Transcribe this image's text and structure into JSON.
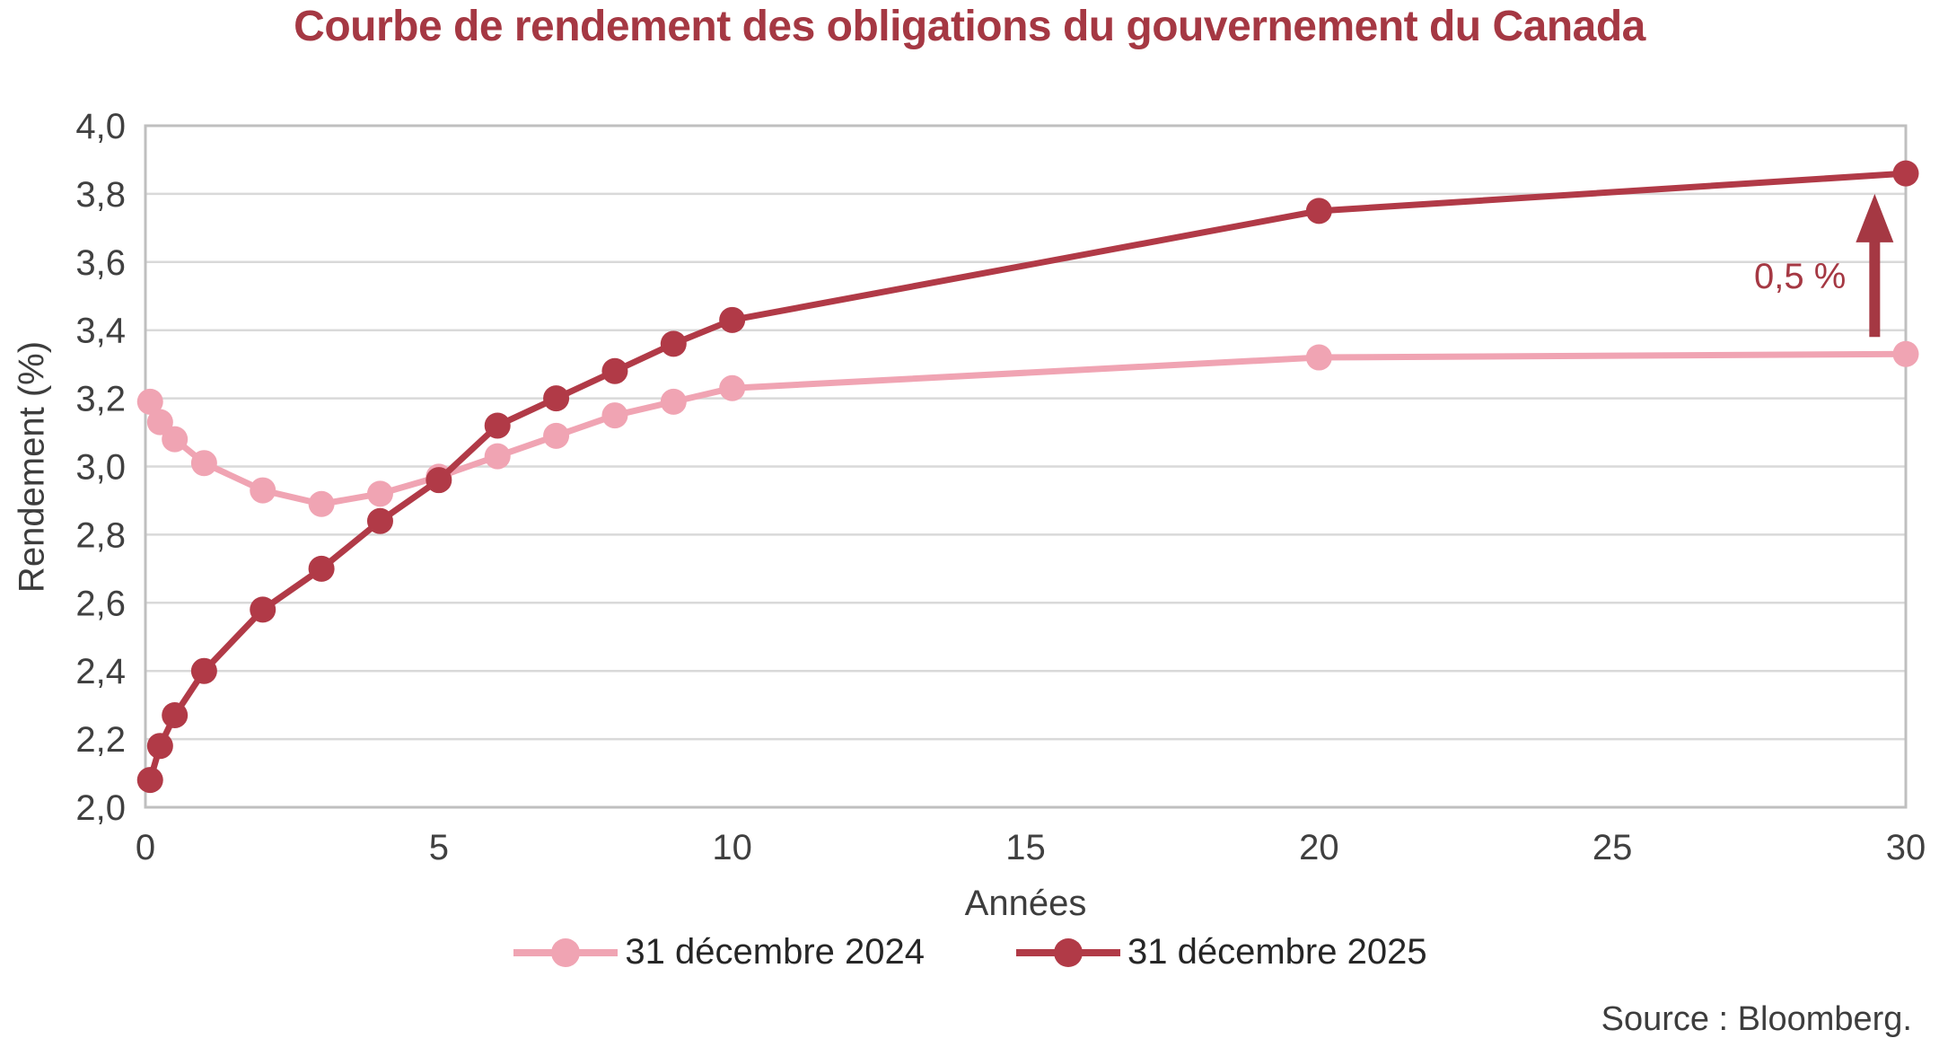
{
  "source": "Source : Bloomberg.",
  "colors": {
    "title": "#A53843",
    "axis_text": "#404040",
    "axis_title_text": "#3D3D3D",
    "legend_text": "#262626",
    "gridline": "#D9D9D9",
    "plot_border": "#BFBFBF",
    "annotation": "#A53843",
    "background": "#FFFFFF"
  },
  "chart_data": {
    "type": "line",
    "title": "Courbe de rendement des obligations du gouvernement du Canada",
    "xlabel": "Années",
    "ylabel": "Rendement (%)",
    "xlim": [
      0,
      30
    ],
    "ylim": [
      2.0,
      4.0
    ],
    "grid": "horizontal",
    "legend_position": "bottom",
    "xticks": [
      0,
      5,
      10,
      15,
      20,
      25,
      30
    ],
    "xtick_labels": [
      "0",
      "5",
      "10",
      "15",
      "20",
      "25",
      "30"
    ],
    "ytick_values": [
      2.0,
      2.2,
      2.4,
      2.6,
      2.8,
      3.0,
      3.2,
      3.4,
      3.6,
      3.8,
      4.0
    ],
    "ytick_labels": [
      "2,0",
      "2,2",
      "2,4",
      "2,6",
      "2,8",
      "3,0",
      "3,2",
      "3,4",
      "3,6",
      "3,8",
      "4,0"
    ],
    "x_years": [
      0.08,
      0.25,
      0.5,
      1,
      2,
      3,
      4,
      5,
      6,
      7,
      8,
      9,
      10,
      20,
      30
    ],
    "series": [
      {
        "name": "31 décembre 2024",
        "color": "#F0A4B3",
        "values": [
          3.19,
          3.13,
          3.08,
          3.01,
          2.93,
          2.89,
          2.92,
          2.97,
          3.03,
          3.09,
          3.15,
          3.19,
          3.23,
          3.32,
          3.33
        ]
      },
      {
        "name": "31 décembre 2025",
        "color": "#B13A47",
        "values": [
          2.08,
          2.18,
          2.27,
          2.4,
          2.58,
          2.7,
          2.84,
          2.96,
          3.12,
          3.2,
          3.28,
          3.36,
          3.43,
          3.75,
          3.86
        ]
      }
    ],
    "annotation": {
      "label": "0,5 %",
      "x_years": 29.47,
      "arrow_from": 3.38,
      "arrow_to": 3.8,
      "label_y": 3.56
    }
  }
}
